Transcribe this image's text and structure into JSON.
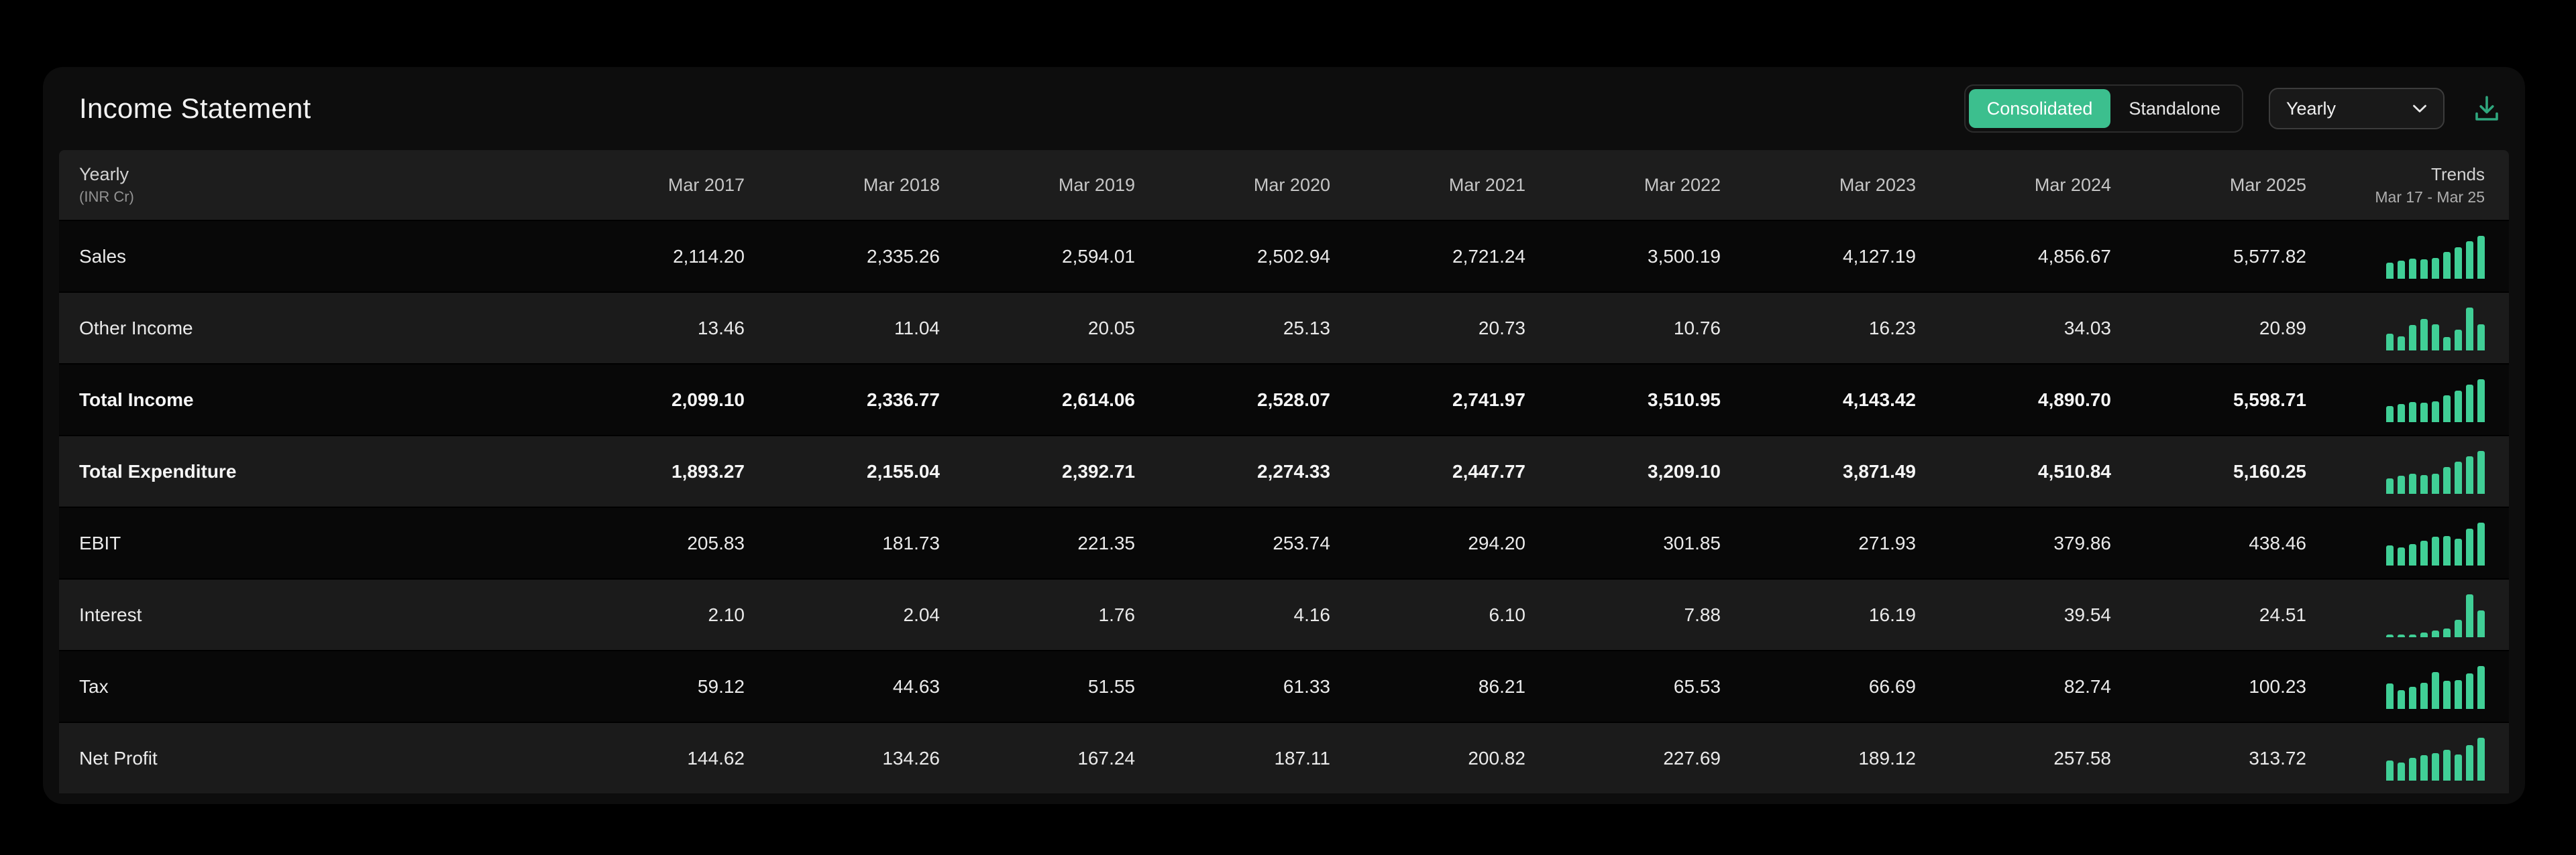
{
  "colors": {
    "accent_green": "#3cbf8e",
    "sparkline_green": "#40cf96",
    "download_green": "#2fa77e",
    "card_bg": "#0d0d0d",
    "header_row_bg": "#1d1d1d",
    "row_dark_bg": "#080808",
    "row_light_bg": "#1b1b1b"
  },
  "header": {
    "title": "Income Statement",
    "toggle": {
      "options": [
        {
          "label": "Consolidated",
          "selected": true
        },
        {
          "label": "Standalone",
          "selected": false
        }
      ]
    },
    "period_dropdown": {
      "value": "Yearly"
    },
    "icons": {
      "download": "download-icon",
      "chevron": "chevron-down-icon"
    }
  },
  "table": {
    "corner": {
      "line1": "Yearly",
      "line2": "(INR Cr)"
    },
    "year_columns": [
      "Mar 2017",
      "Mar 2018",
      "Mar 2019",
      "Mar 2020",
      "Mar 2021",
      "Mar 2022",
      "Mar 2023",
      "Mar 2024",
      "Mar 2025"
    ],
    "trends_header": {
      "line1": "Trends",
      "line2": "Mar 17 - Mar 25"
    },
    "rows": [
      {
        "label": "Sales",
        "bold": false,
        "values": [
          "2,114.20",
          "2,335.26",
          "2,594.01",
          "2,502.94",
          "2,721.24",
          "3,500.19",
          "4,127.19",
          "4,856.67",
          "5,577.82"
        ]
      },
      {
        "label": "Other Income",
        "bold": false,
        "values": [
          "13.46",
          "11.04",
          "20.05",
          "25.13",
          "20.73",
          "10.76",
          "16.23",
          "34.03",
          "20.89"
        ]
      },
      {
        "label": "Total Income",
        "bold": true,
        "values": [
          "2,099.10",
          "2,336.77",
          "2,614.06",
          "2,528.07",
          "2,741.97",
          "3,510.95",
          "4,143.42",
          "4,890.70",
          "5,598.71"
        ]
      },
      {
        "label": "Total Expenditure",
        "bold": true,
        "values": [
          "1,893.27",
          "2,155.04",
          "2,392.71",
          "2,274.33",
          "2,447.77",
          "3,209.10",
          "3,871.49",
          "4,510.84",
          "5,160.25"
        ]
      },
      {
        "label": "EBIT",
        "bold": false,
        "values": [
          "205.83",
          "181.73",
          "221.35",
          "253.74",
          "294.20",
          "301.85",
          "271.93",
          "379.86",
          "438.46"
        ]
      },
      {
        "label": "Interest",
        "bold": false,
        "values": [
          "2.10",
          "2.04",
          "1.76",
          "4.16",
          "6.10",
          "7.88",
          "16.19",
          "39.54",
          "24.51"
        ]
      },
      {
        "label": "Tax",
        "bold": false,
        "values": [
          "59.12",
          "44.63",
          "51.55",
          "61.33",
          "86.21",
          "65.53",
          "66.69",
          "82.74",
          "100.23"
        ]
      },
      {
        "label": "Net Profit",
        "bold": false,
        "values": [
          "144.62",
          "134.26",
          "167.24",
          "187.11",
          "200.82",
          "227.69",
          "189.12",
          "257.58",
          "313.72"
        ]
      }
    ]
  }
}
